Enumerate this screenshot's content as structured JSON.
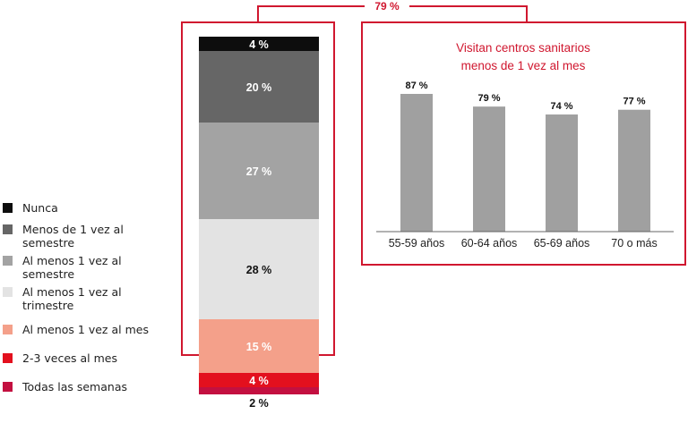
{
  "colors": {
    "accent": "#d0172f",
    "bracket": "#d0172f"
  },
  "chart_data": [
    {
      "type": "bar",
      "stacked": true,
      "orientation": "vertical",
      "bracket_label": "79 %",
      "series": [
        {
          "name": "Nunca",
          "value": 4,
          "label": "4 %",
          "color": "#0d0d0d",
          "label_color": "#ffffff"
        },
        {
          "name": "Menos de 1 vez al semestre",
          "value": 20,
          "label": "20 %",
          "color": "#666666",
          "label_color": "#ffffff"
        },
        {
          "name": "Al menos 1 vez al semestre",
          "value": 27,
          "label": "27 %",
          "color": "#a3a3a3",
          "label_color": "#ffffff"
        },
        {
          "name": "Al menos 1 vez al trimestre",
          "value": 28,
          "label": "28 %",
          "color": "#e3e3e3",
          "label_color": "#111111"
        },
        {
          "name": "Al menos 1 vez al mes",
          "value": 15,
          "label": "15 %",
          "color": "#f4a08a",
          "label_color": "#ffffff"
        },
        {
          "name": "2-3 veces al mes",
          "value": 4,
          "label": "4 %",
          "color": "#e3101e",
          "label_color": "#ffffff"
        },
        {
          "name": "Todas las semanas",
          "value": 2,
          "label": "2 %",
          "color": "#c31040",
          "label_color": "#111111"
        }
      ]
    },
    {
      "type": "bar",
      "title_lines": [
        "Visitan centros sanitarios",
        "menos de 1 vez al mes"
      ],
      "categories": [
        "55-59 años",
        "60-64 años",
        "65-69 años",
        "70 o más"
      ],
      "values": [
        87,
        79,
        74,
        77
      ],
      "value_labels": [
        "87 %",
        "79 %",
        "74 %",
        "77 %"
      ],
      "bar_color": "#a0a0a0",
      "grid": false
    }
  ]
}
